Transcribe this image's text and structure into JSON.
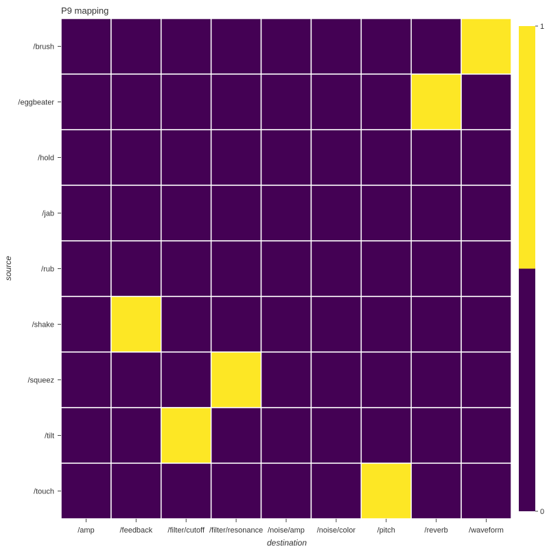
{
  "chart_data": {
    "type": "heatmap",
    "title": "P9 mapping",
    "xlabel": "destination",
    "ylabel": "source",
    "x_categories": [
      "/amp",
      "/feedback",
      "/filter/cutoff",
      "/filter/resonance",
      "/noise/amp",
      "/noise/color",
      "/pitch",
      "/reverb",
      "/waveform"
    ],
    "y_categories": [
      "/brush",
      "/eggbeater",
      "/hold",
      "/jab",
      "/rub",
      "/shake",
      "/squeez",
      "/tilt",
      "/touch"
    ],
    "values": [
      [
        0,
        0,
        0,
        0,
        0,
        0,
        0,
        0,
        1
      ],
      [
        0,
        0,
        0,
        0,
        0,
        0,
        0,
        1,
        0
      ],
      [
        0,
        0,
        0,
        0,
        0,
        0,
        0,
        0,
        0
      ],
      [
        0,
        0,
        0,
        0,
        0,
        0,
        0,
        0,
        0
      ],
      [
        0,
        0,
        0,
        0,
        0,
        0,
        0,
        0,
        0
      ],
      [
        0,
        1,
        0,
        0,
        0,
        0,
        0,
        0,
        0
      ],
      [
        0,
        0,
        0,
        1,
        0,
        0,
        0,
        0,
        0
      ],
      [
        0,
        0,
        1,
        0,
        0,
        0,
        0,
        0,
        0
      ],
      [
        0,
        0,
        0,
        0,
        0,
        0,
        1,
        0,
        0
      ]
    ],
    "color_low": "#440154",
    "color_high": "#fde725",
    "grid_line_color": "#ffffff",
    "colorbar": {
      "min": 0,
      "max": 1,
      "tick_labels": [
        "1",
        "0"
      ]
    }
  }
}
